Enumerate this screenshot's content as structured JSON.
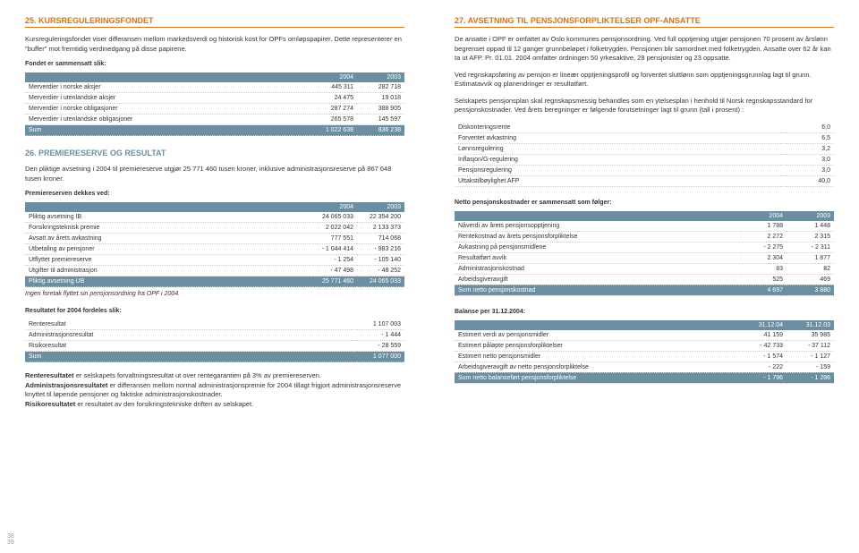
{
  "left": {
    "s25": {
      "title": "25. KURSREGULERINGSFONDET",
      "p1": "Kursreguleringsfondet viser differansen mellom markedsverdi og historisk kost for OPFs omløpspapirer. Dette representerer en \"buffer\" mot fremtidig verdinedgang på disse papirene.",
      "intro": "Fondet er sammensatt slik:",
      "h": [
        "2004",
        "2003"
      ],
      "rows": [
        [
          "Merverdier i norske aksjer",
          "445 311",
          "282 718"
        ],
        [
          "Merverdier i utenlandske aksjer",
          "24 475",
          "19 018"
        ],
        [
          "Merverdier i norske obligasjoner",
          "287 274",
          "388 905"
        ],
        [
          "Merverdier i utenlandske obligasjoner",
          "265 578",
          "145 597"
        ]
      ],
      "sum": [
        "Sum",
        "1 022 638",
        "836 238"
      ]
    },
    "s26": {
      "title": "26. PREMIERESERVE OG RESULTAT",
      "p1": "Den pliktige avsetning i 2004 til premiereserve utgjør 25 771 460 tusen kroner, inklusive administrasjonsreserve på 867 648 tusen kroner.",
      "intro": "Premiereserven dekkes ved:",
      "h": [
        "2004",
        "2003"
      ],
      "rows": [
        [
          "Pliktig avsetning IB",
          "24 065 033",
          "22 354 200"
        ],
        [
          "Forsikringsteknisk premie",
          "2 022 042",
          "2 133 373"
        ],
        [
          "Avsatt av årets avkastning",
          "777 551",
          "714 068"
        ],
        [
          "Utbetaling av pensjoner",
          "- 1 044 414",
          "- 983 216"
        ],
        [
          "Utflyttet premiereserve",
          "- 1 254",
          "- 105 140"
        ],
        [
          "Utgifter til administrasjon",
          "- 47 498",
          "- 48 252"
        ]
      ],
      "sum": [
        "Pliktig avsetning UB",
        "25 771 460",
        "24 065 033"
      ],
      "note": "Ingen foretak flyttet sin pensjonsordning fra OPF i 2004.",
      "intro2": "Resultatet for 2004 fordeles slik:",
      "rows2": [
        [
          "Renteresultat",
          "1 107 003"
        ],
        [
          "Administrasjonsresultat",
          "- 1 444"
        ],
        [
          "Risikoresultat",
          "- 28 559"
        ]
      ],
      "sum2": [
        "Sum",
        "1 077 000"
      ],
      "p2a": "Renteresultatet",
      "p2at": " er selskapets forvaltningsresultat ut over rentegarantien på 3% av premiereserven.",
      "p2b": "Administrasjonsresultatet",
      "p2bt": " er differansen mellom normal administrasjonspremie for 2004 tillagt frigjort administrasjonsreserve knyttet til løpende pensjoner og faktiske administrasjonskostnader.",
      "p2c": "Risikoresultatet",
      "p2ct": " er resultatet av den forsikringstekniske driften av selskapet."
    },
    "pg": "38\n39"
  },
  "right": {
    "s27": {
      "title": "27. AVSETNING TIL PENSJONSFORPLIKTELSER OPF-ANSATTE",
      "p1": "De ansatte i OPF er omfattet av Oslo kommunes pensjonsordning. Ved full opptjening utgjør pensjonen 70 prosent av årslønn begrenset oppad til 12 ganger grunnbeløpet i folketrygden. Pensjonen blir samordnet med folketrygden. Ansatte over 62 år kan ta ut AFP. Pr. 01.01. 2004 omfatter ordningen 50 yrkesaktive, 28 pensjonister og 23 oppsatte.",
      "p2": "Ved regnskapsføring av pensjon er lineær opptjeningsprofil og forventet sluttlønn som opptjeningsgrunnlag lagt til grunn. Estimatavvik og planendringer er resultatført.",
      "p3": "Selskapets pensjonsplan skal regnskapsmessig behandles som en ytelsesplan i henhold til Norsk regnskapsstandard for pensjonskostnader. Ved årets beregninger er følgende forutsetninger lagt til grunn (tall i prosent) :",
      "rows1": [
        [
          "Diskonteringsrente",
          "6,0"
        ],
        [
          "Forventet avkastning",
          "6,5"
        ],
        [
          "Lønnsregulering",
          "3,2"
        ],
        [
          "Inflasjon/G-regulering",
          "3,0"
        ],
        [
          "Pensjonsregulering",
          "3,0"
        ],
        [
          "Uttakstilbøylighet AFP",
          "40,0"
        ]
      ],
      "intro2": "Netto pensjonskostnader er sammensatt som følger:",
      "h2": [
        "2004",
        "2003"
      ],
      "rows2": [
        [
          "Nåverdi av årets pensjonsopptjening",
          "1 788",
          "1 448"
        ],
        [
          "Rentekostnad av årets pensjonsforpliktelse",
          "2 272",
          "2 315"
        ],
        [
          "Avkastning på pensjonsmidlene",
          "- 2 275",
          "- 2 311"
        ],
        [
          "Resultatført avvik",
          "2 304",
          "1 877"
        ],
        [
          "Administrasjonskostnad",
          "83",
          "82"
        ],
        [
          "Arbeidsgiveravgift",
          "525",
          "469"
        ]
      ],
      "sum2": [
        "Sum netto pensjonskostnad",
        "4 697",
        "3 880"
      ],
      "intro3": "Balanse per 31.12.2004:",
      "h3": [
        "31.12.04",
        "31.12.03"
      ],
      "rows3": [
        [
          "Estimert verdi av pensjonsmidler",
          "41 159",
          "35 985"
        ],
        [
          "Estimert påløpte pensjonsforpliktelser",
          "- 42 733",
          "- 37 112"
        ],
        [
          "Estimert netto pensjonsmidler",
          "- 1 574",
          "- 1 127"
        ],
        [
          "Arbeidsgiveravgift av netto pensjonsforpliktelse",
          "- 222",
          "- 159"
        ]
      ],
      "sum3": [
        "Sum netto balanseført pensjonsforpliktelse",
        "- 1 796",
        "- 1 286"
      ]
    }
  }
}
